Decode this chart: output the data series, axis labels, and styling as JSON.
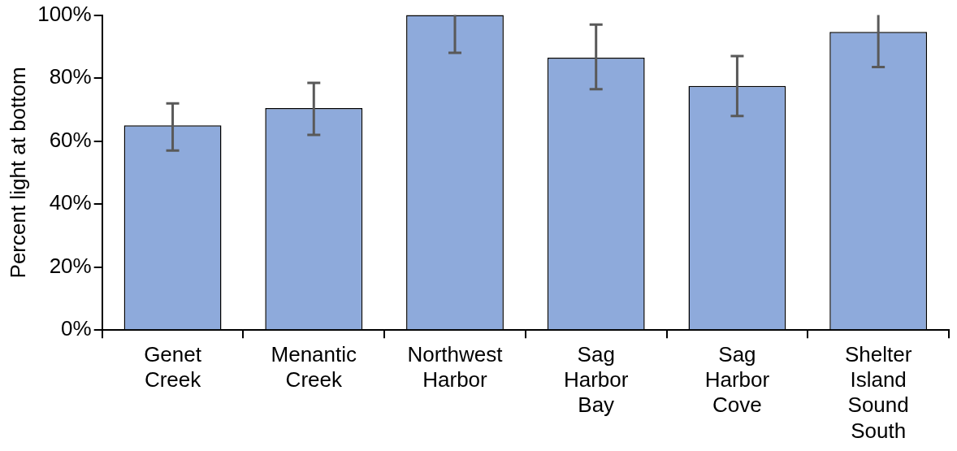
{
  "chart_data": {
    "type": "bar",
    "ylabel": "Percent light at bottom",
    "categories": [
      "Genet Creek",
      "Menantic Creek",
      "Northwest Harbor",
      "Sag Harbor Bay",
      "Sag Harbor Cove",
      "Shelter Island Sound South"
    ],
    "values": [
      65,
      70.5,
      100,
      86.5,
      77.5,
      94.7
    ],
    "errors": [
      [
        57,
        72
      ],
      [
        62,
        78.5
      ],
      [
        88,
        100
      ],
      [
        76.5,
        97
      ],
      [
        68,
        87
      ],
      [
        83.5,
        100
      ]
    ],
    "color": "#8eaadb",
    "ylim": [
      0,
      100
    ],
    "yticks": [
      {
        "value": 0,
        "label": "0%"
      },
      {
        "value": 20,
        "label": "20%"
      },
      {
        "value": 40,
        "label": "40%"
      },
      {
        "value": 60,
        "label": "60%"
      },
      {
        "value": 80,
        "label": "80%"
      },
      {
        "value": 100,
        "label": "100%"
      }
    ],
    "grid": false,
    "legend": false
  }
}
